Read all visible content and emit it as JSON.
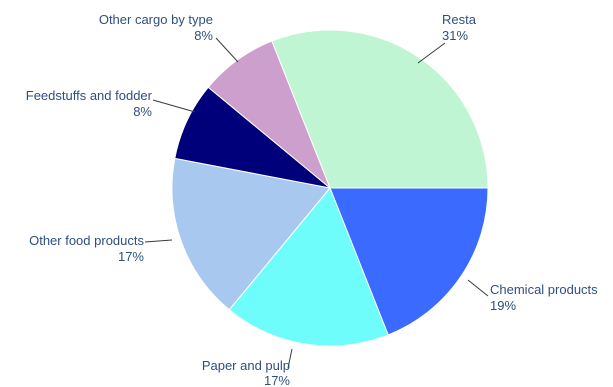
{
  "chart_data": {
    "type": "pie",
    "title": "",
    "slices": [
      {
        "label": "Resta",
        "value": 31,
        "display": "31%",
        "color": "#c0f5d3"
      },
      {
        "label": "Chemical products",
        "value": 19,
        "display": "19%",
        "color": "#3a6aff"
      },
      {
        "label": "Paper and pulp",
        "value": 17,
        "display": "17%",
        "color": "#6ffdfb"
      },
      {
        "label": "Other food products",
        "value": 17,
        "display": "17%",
        "color": "#a8c8f0"
      },
      {
        "label": "Feedstuffs and fodder",
        "value": 8,
        "display": "8%",
        "color": "#00007a"
      },
      {
        "label": "Other cargo by type",
        "value": 8,
        "display": "8%",
        "color": "#cc9fcc"
      }
    ],
    "start_angle_deg": 0,
    "direction": "clockwise",
    "legend": "none",
    "label_color": "#2f4f7f"
  }
}
